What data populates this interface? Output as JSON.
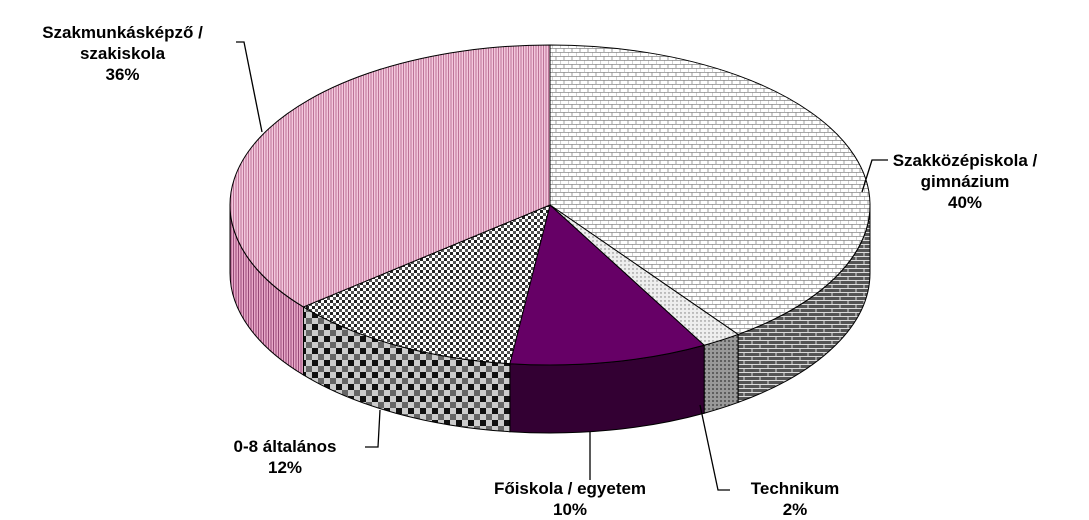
{
  "chart_data": {
    "type": "pie3d",
    "categories": [
      "Szakközépiskola / gimnázium",
      "Technikum",
      "Főiskola / egyetem",
      "0-8 általános",
      "Szakmunkásképző / szakiskola"
    ],
    "values": [
      40,
      2,
      10,
      12,
      36
    ],
    "value_labels": [
      "40%",
      "2%",
      "10%",
      "12%",
      "36%"
    ]
  }
}
